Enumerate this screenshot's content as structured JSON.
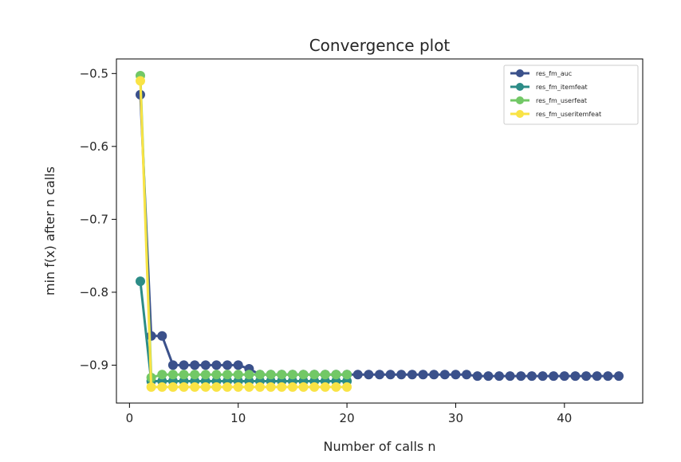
{
  "chart_data": {
    "type": "line",
    "title": "Convergence plot",
    "xlabel": "Number of calls n",
    "ylabel": "min f(x) after n calls",
    "xlim": [
      -1.2,
      47.2
    ],
    "ylim": [
      -0.952,
      -0.48
    ],
    "xticks": [
      0,
      10,
      20,
      30,
      40
    ],
    "yticks": [
      -0.5,
      -0.6,
      -0.7,
      -0.8,
      -0.9
    ],
    "xtick_labels": [
      "0",
      "10",
      "20",
      "30",
      "40"
    ],
    "ytick_labels": [
      "−0.5",
      "−0.6",
      "−0.7",
      "−0.8",
      "−0.9"
    ],
    "legend_position": "upper right",
    "grid": false,
    "series": [
      {
        "name": "res_fm_auc",
        "color": "#3b518b",
        "x": [
          1,
          2,
          3,
          4,
          5,
          6,
          7,
          8,
          9,
          10,
          11,
          12,
          13,
          14,
          15,
          16,
          17,
          18,
          19,
          20,
          21,
          22,
          23,
          24,
          25,
          26,
          27,
          28,
          29,
          30,
          31,
          32,
          33,
          34,
          35,
          36,
          37,
          38,
          39,
          40,
          41,
          42,
          43,
          44,
          45
        ],
        "y": [
          -0.529,
          -0.86,
          -0.86,
          -0.9,
          -0.9,
          -0.9,
          -0.9,
          -0.9,
          -0.9,
          -0.9,
          -0.905,
          -0.913,
          -0.913,
          -0.913,
          -0.913,
          -0.913,
          -0.913,
          -0.913,
          -0.913,
          -0.913,
          -0.913,
          -0.913,
          -0.913,
          -0.913,
          -0.913,
          -0.913,
          -0.913,
          -0.913,
          -0.913,
          -0.913,
          -0.913,
          -0.915,
          -0.915,
          -0.915,
          -0.915,
          -0.915,
          -0.915,
          -0.915,
          -0.915,
          -0.915,
          -0.915,
          -0.915,
          -0.915,
          -0.915,
          -0.915
        ]
      },
      {
        "name": "res_fm_itemfeat",
        "color": "#2c8c87",
        "x": [
          1,
          2,
          3,
          4,
          5,
          6,
          7,
          8,
          9,
          10,
          11,
          12,
          13,
          14,
          15,
          16,
          17,
          18,
          19,
          20
        ],
        "y": [
          -0.785,
          -0.922,
          -0.922,
          -0.922,
          -0.922,
          -0.922,
          -0.922,
          -0.922,
          -0.922,
          -0.922,
          -0.922,
          -0.922,
          -0.922,
          -0.922,
          -0.922,
          -0.922,
          -0.922,
          -0.922,
          -0.922,
          -0.922
        ]
      },
      {
        "name": "res_fm_userfeat",
        "color": "#72c866",
        "x": [
          1,
          2,
          3,
          4,
          5,
          6,
          7,
          8,
          9,
          10,
          11,
          12,
          13,
          14,
          15,
          16,
          17,
          18,
          19,
          20
        ],
        "y": [
          -0.503,
          -0.917,
          -0.913,
          -0.913,
          -0.913,
          -0.913,
          -0.913,
          -0.913,
          -0.913,
          -0.913,
          -0.913,
          -0.913,
          -0.913,
          -0.913,
          -0.913,
          -0.913,
          -0.913,
          -0.913,
          -0.913,
          -0.913
        ]
      },
      {
        "name": "res_fm_useritemfeat",
        "color": "#f9e345",
        "x": [
          1,
          2,
          3,
          4,
          5,
          6,
          7,
          8,
          9,
          10,
          11,
          12,
          13,
          14,
          15,
          16,
          17,
          18,
          19,
          20
        ],
        "y": [
          -0.51,
          -0.93,
          -0.93,
          -0.93,
          -0.93,
          -0.93,
          -0.93,
          -0.93,
          -0.93,
          -0.93,
          -0.93,
          -0.93,
          -0.93,
          -0.93,
          -0.93,
          -0.93,
          -0.93,
          -0.93,
          -0.93,
          -0.93
        ]
      }
    ]
  }
}
